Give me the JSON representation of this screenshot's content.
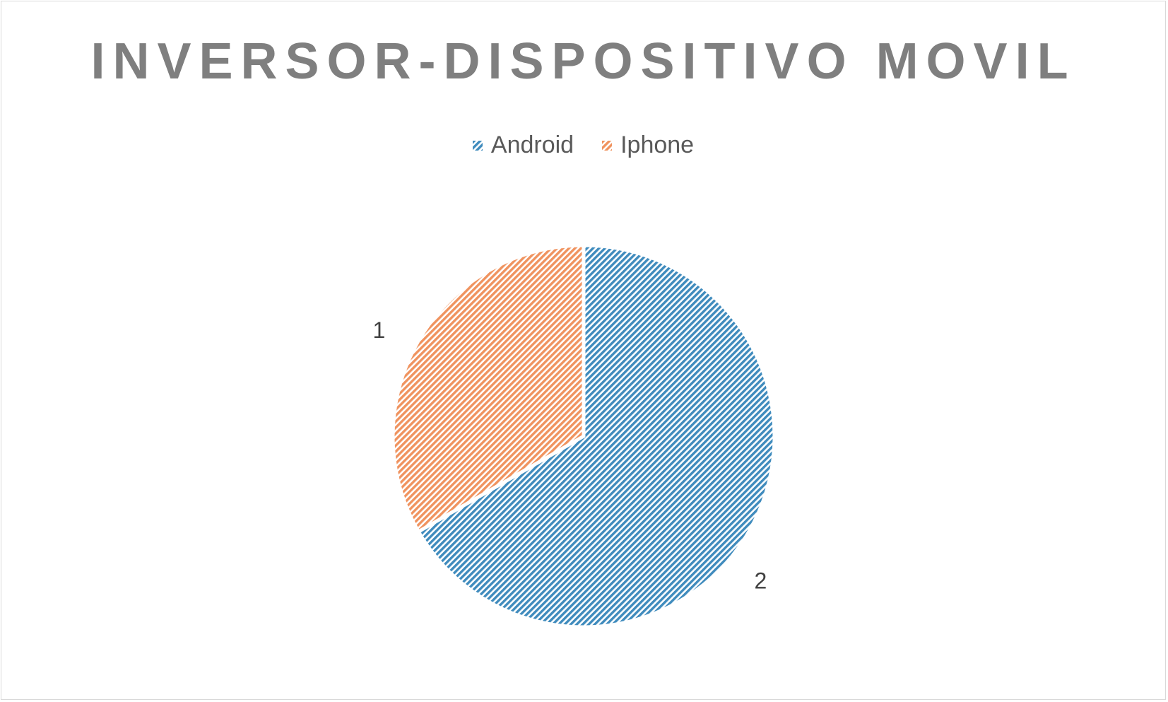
{
  "chart_data": {
    "type": "pie",
    "title": "INVERSOR-DISPOSITIVO MOVIL",
    "categories": [
      "Android",
      "Iphone"
    ],
    "values": [
      2,
      1
    ],
    "data_labels": [
      "2",
      "1"
    ],
    "colors": [
      "#3f8bbd",
      "#f0935f"
    ],
    "legend_position": "top",
    "fill_pattern": "diagonal-stripes"
  },
  "legend": {
    "items": [
      {
        "label": "Android"
      },
      {
        "label": "Iphone"
      }
    ]
  }
}
